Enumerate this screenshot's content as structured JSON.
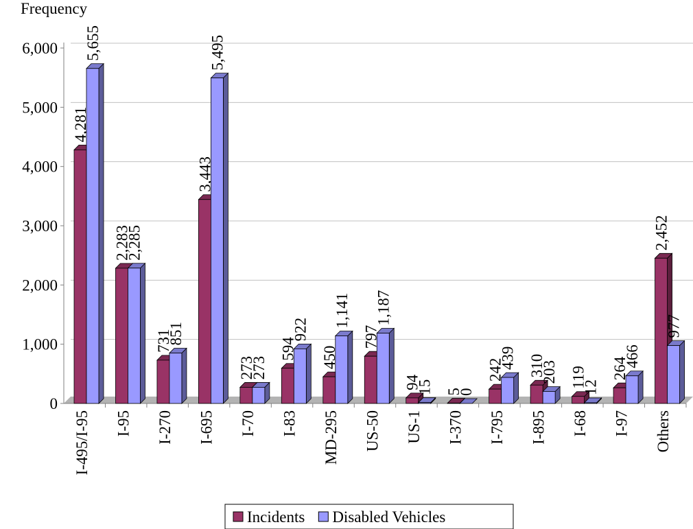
{
  "chart_data": {
    "type": "bar",
    "y_label": "Frequency",
    "categories": [
      "I-495/I-95",
      "I-95",
      "I-270",
      "I-695",
      "I-70",
      "I-83",
      "MD-295",
      "US-50",
      "US-1",
      "I-370",
      "I-795",
      "I-895",
      "I-68",
      "I-97",
      "Others"
    ],
    "series": [
      {
        "name": "Incidents",
        "color": "#993366",
        "values": [
          4281,
          2283,
          731,
          3443,
          273,
          594,
          450,
          797,
          94,
          5,
          242,
          310,
          119,
          264,
          2452
        ],
        "value_labels": [
          "4,281",
          "2,283",
          "731",
          "3,443",
          "273",
          "594",
          "450",
          "797",
          "94",
          "5",
          "242",
          "310",
          "119",
          "264",
          "2,452"
        ]
      },
      {
        "name": "Disabled Vehicles",
        "color": "#9999ff",
        "values": [
          5655,
          2285,
          851,
          5495,
          273,
          922,
          1141,
          1187,
          15,
          0,
          439,
          203,
          12,
          466,
          977
        ],
        "value_labels": [
          "5,655",
          "2,285",
          "851",
          "5,495",
          "273",
          "922",
          "1,141",
          "1,187",
          "15",
          "0",
          "439",
          "203",
          "12",
          "466",
          "977"
        ]
      }
    ],
    "ylim": [
      0,
      6000
    ],
    "yticks": [
      0,
      {
        "value": 1000,
        "label": "1,000"
      },
      {
        "value": 2000,
        "label": "2,000"
      },
      {
        "value": 3000,
        "label": "3,000"
      },
      {
        "value": 4000,
        "label": "4,000"
      },
      {
        "value": 5000,
        "label": "5,000"
      },
      {
        "value": 6000,
        "label": "6,000"
      }
    ],
    "grid": true,
    "legend": "bottom"
  }
}
